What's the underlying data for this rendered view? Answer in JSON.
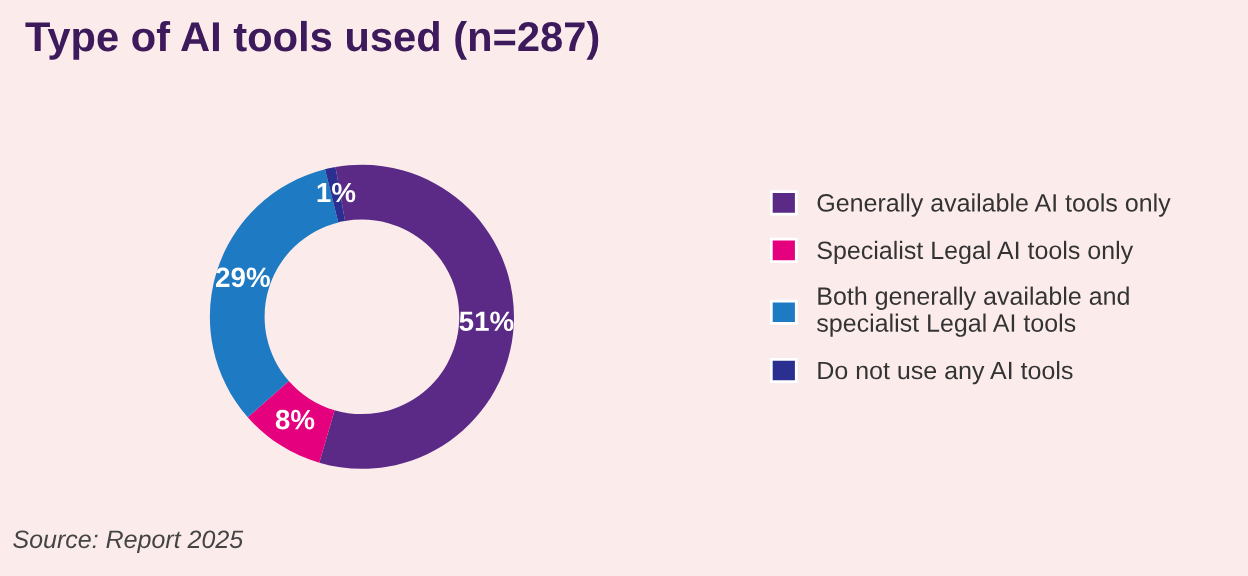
{
  "chart_data": {
    "type": "donut",
    "title": "Type of AI tools used (n=287)",
    "categories": [
      "Generally available AI tools only",
      "Specialist Legal AI tools only",
      "Both generally available and\nspecialist Legal AI tools",
      "Do not use any AI tools"
    ],
    "values": [
      51,
      8,
      29,
      1
    ],
    "value_labels": [
      "51%",
      "8%",
      "29%",
      "1%"
    ],
    "colors": [
      "#5b2a86",
      "#e5007d",
      "#1f7ac4",
      "#2b2f8f"
    ],
    "legend": "right",
    "annotations": [
      "Source: Report 2025"
    ]
  }
}
